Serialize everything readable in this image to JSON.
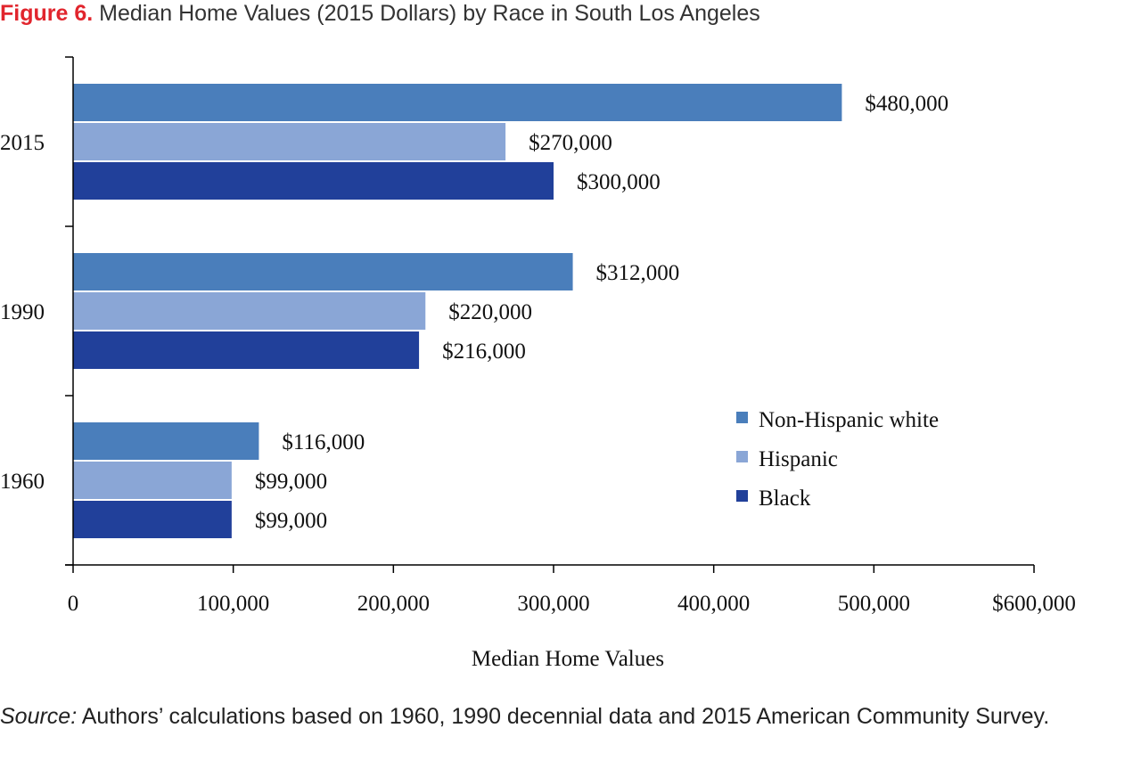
{
  "figure_label": "Figure 6.",
  "title": "Median Home Values (2015 Dollars) by Race in South Los Angeles",
  "source_label": "Source:",
  "source_text": " Authors’ calculations based on 1960, 1990 decennial data and 2015 American Community Survey.",
  "chart_data": {
    "type": "bar",
    "orientation": "horizontal",
    "categories": [
      "2015",
      "1990",
      "1960"
    ],
    "series": [
      {
        "name": "Non-Hispanic white",
        "color": "#4a7ebb",
        "values": [
          480000,
          312000,
          116000
        ],
        "labels": [
          "$480,000",
          "$312,000",
          "$116,000"
        ]
      },
      {
        "name": "Hispanic",
        "color": "#8aa6d6",
        "values": [
          270000,
          220000,
          99000
        ],
        "labels": [
          "$270,000",
          "$220,000",
          "$99,000"
        ]
      },
      {
        "name": "Black",
        "color": "#21409a",
        "values": [
          300000,
          216000,
          99000
        ],
        "labels": [
          "$300,000",
          "$216,000",
          "$99,000"
        ]
      }
    ],
    "xlabel": "Median Home Values",
    "xlim": [
      0,
      600000
    ],
    "xticks": [
      0,
      100000,
      200000,
      300000,
      400000,
      500000,
      600000
    ],
    "xtick_labels": [
      "0",
      "100,000",
      "200,000",
      "300,000",
      "400,000",
      "500,000",
      "$600,000"
    ],
    "legend_position": "right",
    "grid": false
  }
}
